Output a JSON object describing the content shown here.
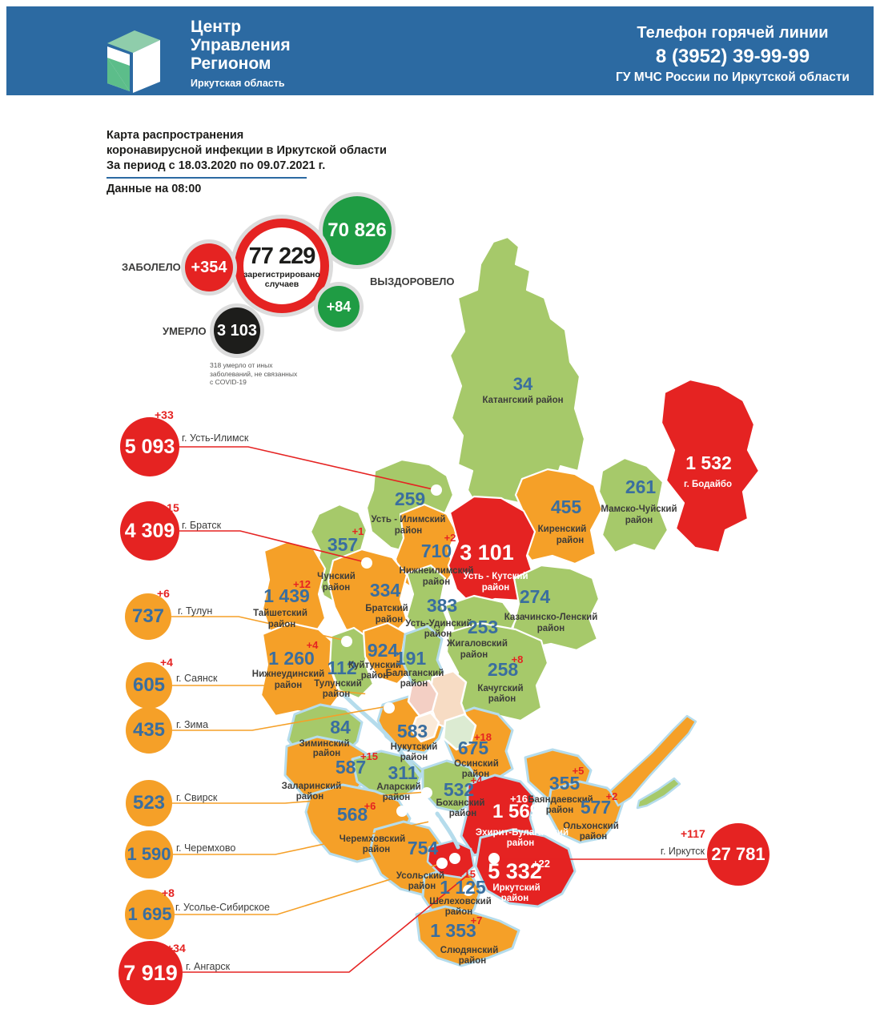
{
  "header": {
    "logo": {
      "title_lines": [
        "Центр",
        "Управления",
        "Регионом"
      ],
      "subtitle": "Иркутская область"
    },
    "hotline": {
      "line1": "Телефон горячей линии",
      "line2": "8 (3952) 39-99-99",
      "line3": "ГУ МЧС России по Иркутской области"
    }
  },
  "title": {
    "lines": [
      "Карта распространения",
      "коронавирусной инфекции в Иркутской области",
      "За период с 18.03.2020 по 09.07.2021 г."
    ],
    "updated": "Данные на 08:00"
  },
  "stats": {
    "registered": {
      "value": "77 229",
      "label_lines": [
        "зарегистрировано",
        "случаев"
      ]
    },
    "sick": {
      "label": "ЗАБОЛЕЛО",
      "delta": "+354"
    },
    "recovered": {
      "label": "ВЫЗДОРОВЕЛО",
      "value": "70 826",
      "delta": "+84"
    },
    "died": {
      "label": "УМЕРЛО",
      "value": "3 103"
    },
    "note_lines": [
      "318 умерло от иных",
      "заболеваний, не связанных",
      "с COVID-19"
    ]
  },
  "cities": [
    {
      "id": "ust_ilimsk",
      "name": "г. Усть-Илимск",
      "value": "5 093",
      "delta": "+33",
      "severity": "red"
    },
    {
      "id": "bratsk",
      "name": "г. Братск",
      "value": "4 309",
      "delta": "+15",
      "severity": "red"
    },
    {
      "id": "tulun",
      "name": "г. Тулун",
      "value": "737",
      "delta": "+6",
      "severity": "orange"
    },
    {
      "id": "sayansk",
      "name": "г. Саянск",
      "value": "605",
      "delta": "+4",
      "severity": "orange"
    },
    {
      "id": "zima",
      "name": "г. Зима",
      "value": "435",
      "delta": null,
      "severity": "orange"
    },
    {
      "id": "svirsk",
      "name": "г. Свирск",
      "value": "523",
      "delta": null,
      "severity": "orange"
    },
    {
      "id": "cheremkhovo",
      "name": "г. Черемхово",
      "value": "1 590",
      "delta": null,
      "severity": "orange"
    },
    {
      "id": "usolye",
      "name": "г. Усолье-Сибирское",
      "value": "1 695",
      "delta": "+8",
      "severity": "orange"
    },
    {
      "id": "angarsk",
      "name": "г. Ангарск",
      "value": "7 919",
      "delta": "+34",
      "severity": "red"
    },
    {
      "id": "irkutsk",
      "name": "г. Иркутск",
      "value": "27 781",
      "delta": "+117",
      "severity": "red"
    }
  ],
  "map": {
    "districts": [
      {
        "id": "katangsky",
        "name_lines": [
          "Катангский район"
        ],
        "value": "34",
        "delta": null,
        "color": "green"
      },
      {
        "id": "ust_ilimsky",
        "name_lines": [
          "Усть - Илимский",
          "район"
        ],
        "value": "259",
        "delta": null,
        "color": "green"
      },
      {
        "id": "kirensky",
        "name_lines": [
          "Киренский",
          "район"
        ],
        "value": "455",
        "delta": null,
        "color": "orange"
      },
      {
        "id": "mamsko_chuisky",
        "name_lines": [
          "Мамско-Чуйский",
          "район"
        ],
        "value": "261",
        "delta": null,
        "color": "green"
      },
      {
        "id": "bodaibinsky",
        "name_lines": [
          "г. Бодайбо"
        ],
        "value": "1 532",
        "delta": null,
        "color": "red"
      },
      {
        "id": "chunsky",
        "name_lines": [
          "Чунский",
          "район"
        ],
        "value": "357",
        "delta": "+1",
        "color": "green"
      },
      {
        "id": "nizhneilimsky",
        "name_lines": [
          "Нижнеилимский",
          "район"
        ],
        "value": "710",
        "delta": "+2",
        "color": "orange"
      },
      {
        "id": "ust_kutsky",
        "name_lines": [
          "Усть - Кутский",
          "район"
        ],
        "value": "3 101",
        "delta": null,
        "color": "red"
      },
      {
        "id": "kazachinsky",
        "name_lines": [
          "Казачинско-Ленский",
          "район"
        ],
        "value": "274",
        "delta": null,
        "color": "green"
      },
      {
        "id": "taishetsky",
        "name_lines": [
          "Тайшетский",
          "район"
        ],
        "value": "1 439",
        "delta": "+12",
        "color": "orange"
      },
      {
        "id": "bratsky",
        "name_lines": [
          "Братский",
          "район"
        ],
        "value": "334",
        "delta": null,
        "color": "orange"
      },
      {
        "id": "ust_udinsky",
        "name_lines": [
          "Усть-Удинский",
          "район"
        ],
        "value": "383",
        "delta": null,
        "color": "green"
      },
      {
        "id": "zhigalovsky",
        "name_lines": [
          "Жигаловский",
          "район"
        ],
        "value": "253",
        "delta": null,
        "color": "green"
      },
      {
        "id": "nizhneudinsky",
        "name_lines": [
          "Нижнеудинский",
          "район"
        ],
        "value": "1 260",
        "delta": "+4",
        "color": "orange"
      },
      {
        "id": "tulunsky",
        "name_lines": [
          "Тулунский",
          "район"
        ],
        "value": "112",
        "delta": null,
        "color": "green"
      },
      {
        "id": "kuitunsky",
        "name_lines": [
          "Куйтунский",
          "район"
        ],
        "value": "924",
        "delta": null,
        "color": "orange"
      },
      {
        "id": "balagansky",
        "name_lines": [
          "Балаганский",
          "район"
        ],
        "value": "191",
        "delta": null,
        "color": "green"
      },
      {
        "id": "kachugsky",
        "name_lines": [
          "Качугский",
          "район"
        ],
        "value": "258",
        "delta": "+8",
        "color": "green"
      },
      {
        "id": "ziminsky",
        "name_lines": [
          "Зиминский",
          "район"
        ],
        "value": "84",
        "delta": null,
        "color": "green"
      },
      {
        "id": "nukutsky",
        "name_lines": [
          "Нукутский",
          "район"
        ],
        "value": "583",
        "delta": null,
        "color": "orange"
      },
      {
        "id": "osinsky",
        "name_lines": [
          "Осинский",
          "район"
        ],
        "value": "675",
        "delta": "+18",
        "color": "orange"
      },
      {
        "id": "zalarinsky",
        "name_lines": [
          "Заларинский",
          "район"
        ],
        "value": "587",
        "delta": "+15",
        "color": "orange"
      },
      {
        "id": "alarsky",
        "name_lines": [
          "Аларский",
          "район"
        ],
        "value": "311",
        "delta": null,
        "color": "green"
      },
      {
        "id": "bokhansky",
        "name_lines": [
          "Боханский",
          "район"
        ],
        "value": "532",
        "delta": "+4",
        "color": "green"
      },
      {
        "id": "bayandaevsky",
        "name_lines": [
          "Баяндаевский",
          "район"
        ],
        "value": "355",
        "delta": "+5",
        "color": "orange"
      },
      {
        "id": "olkhonsky",
        "name_lines": [
          "Ольхонский",
          "район"
        ],
        "value": "577",
        "delta": "+2",
        "color": "orange"
      },
      {
        "id": "ekhirit",
        "name_lines": [
          "Эхирит-Булагатский",
          "район"
        ],
        "value": "1 569",
        "delta": "+16",
        "color": "red"
      },
      {
        "id": "cheremkhovsky",
        "name_lines": [
          "Черемховский",
          "район"
        ],
        "value": "568",
        "delta": "+6",
        "color": "orange"
      },
      {
        "id": "usolsky",
        "name_lines": [
          "Усольский",
          "район"
        ],
        "value": "754",
        "delta": null,
        "color": "orange"
      },
      {
        "id": "shelekhovsky",
        "name_lines": [
          "Шелеховский",
          "район"
        ],
        "value": "1 125",
        "delta": "+15",
        "color": "orange"
      },
      {
        "id": "irkutsky",
        "name_lines": [
          "Иркутский",
          "район"
        ],
        "value": "5 332",
        "delta": "+22",
        "color": "red"
      },
      {
        "id": "slyudyansky",
        "name_lines": [
          "Слюдянский",
          "район"
        ],
        "value": "1 353",
        "delta": "+7",
        "color": "orange"
      }
    ]
  },
  "colors": {
    "header_blue": "#2C6AA2",
    "red": "#E52322",
    "orange": "#F5A028",
    "green": "#A6C96A",
    "stat_green": "#1F9C44",
    "black": "#1D1D1B",
    "number_blue": "#3A6E9F",
    "halo_gray": "#DCDCDC",
    "water": "#B5DCEC",
    "logo_green_light": "#8FCDAB",
    "logo_green": "#5CBD8A"
  }
}
